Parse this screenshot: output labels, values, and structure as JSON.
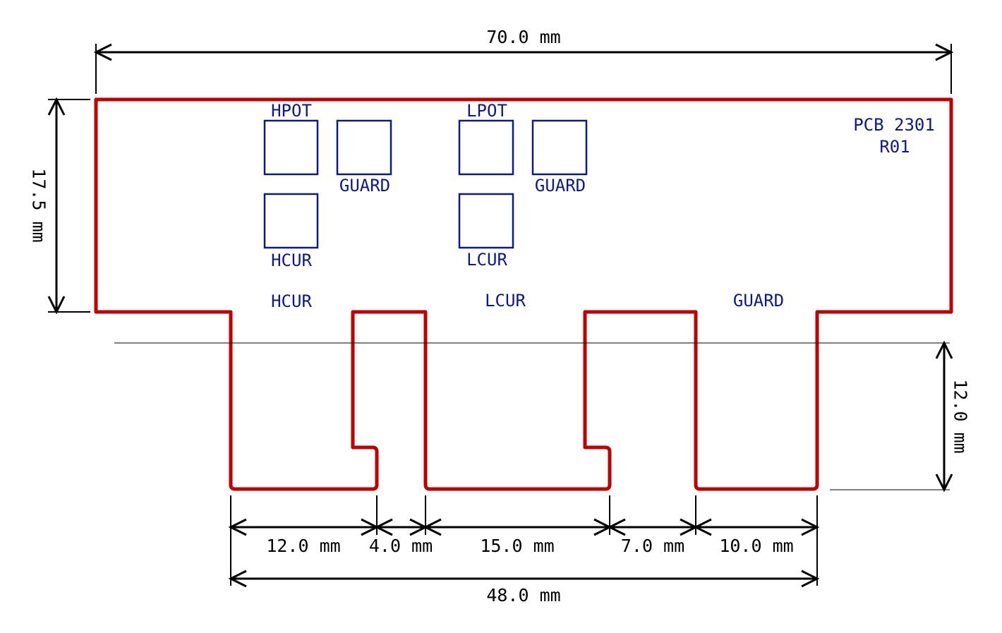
{
  "colors": {
    "background": "#ffffff",
    "board_outline": "#c00000",
    "silkscreen": "#0d1a84",
    "dimension": "#000000"
  },
  "board": {
    "id_line1": "PCB 2301",
    "id_line2": "R01"
  },
  "pads": {
    "hpot": "HPOT",
    "hcur_pad": "HCUR",
    "guard_left": "GUARD",
    "lpot": "LPOT",
    "lcur_pad": "LCUR",
    "guard_right": "GUARD"
  },
  "fingers": {
    "hcur": "HCUR",
    "lcur": "LCUR",
    "guard": "GUARD"
  },
  "dimensions": {
    "overall_width": "70.0 mm",
    "board_height": "17.5 mm",
    "finger_length": "12.0 mm",
    "hcur_width": "12.0 mm",
    "gap_1": "4.0 mm",
    "lcur_width": "15.0 mm",
    "gap_2": "7.0 mm",
    "guard_width": "10.0 mm",
    "finger_span": "48.0 mm"
  }
}
